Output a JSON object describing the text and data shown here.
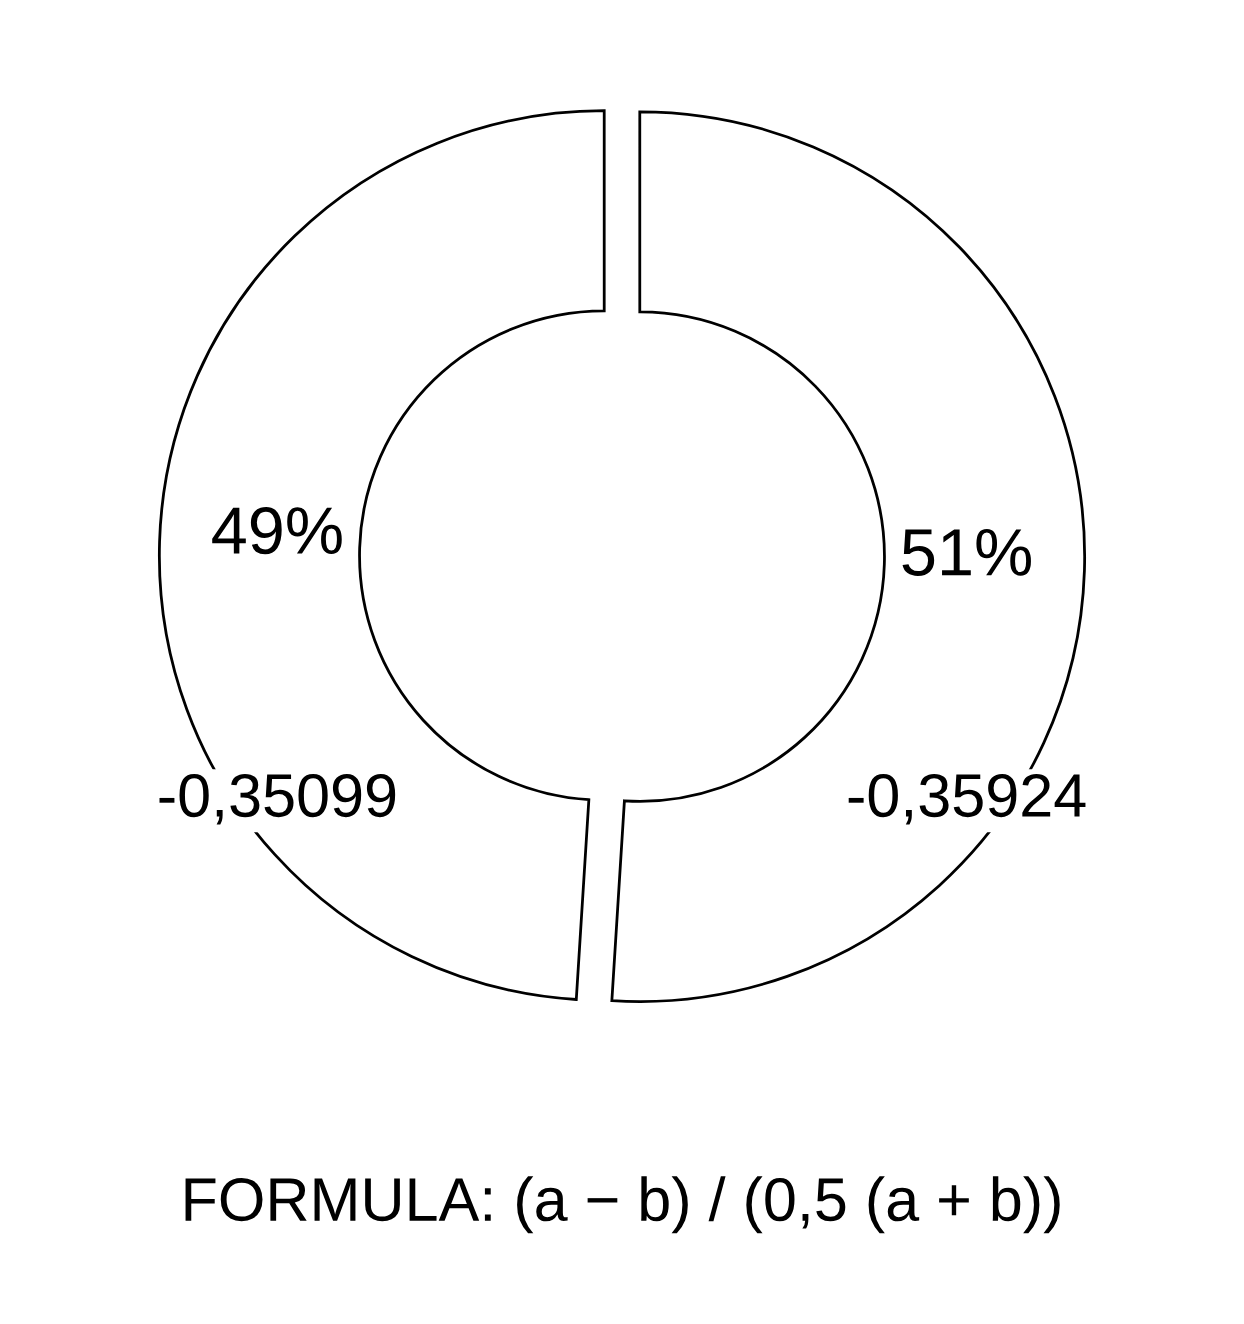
{
  "chart_data": {
    "type": "donut",
    "categories": [
      null,
      null
    ],
    "values": [
      49,
      51
    ],
    "colors": [
      "#ffffff",
      "#ffffff"
    ],
    "value_labels": [
      "49%",
      "51%"
    ],
    "annotations": [
      "-0,35099",
      "-0,35924",
      "FORMULA: (a − b) / (0,5 (a + b))"
    ]
  }
}
